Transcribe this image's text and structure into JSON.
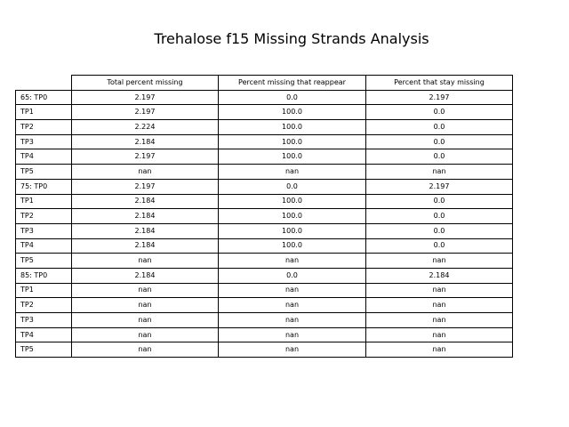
{
  "chart_data": {
    "type": "table",
    "title": "Trehalose f15 Missing Strands Analysis",
    "columns": [
      "Total percent missing",
      "Percent missing that reappear",
      "Percent that stay missing"
    ],
    "rows": [
      {
        "label": "65: TP0",
        "values": [
          "2.197",
          "0.0",
          "2.197"
        ]
      },
      {
        "label": "TP1",
        "values": [
          "2.197",
          "100.0",
          "0.0"
        ]
      },
      {
        "label": "TP2",
        "values": [
          "2.224",
          "100.0",
          "0.0"
        ]
      },
      {
        "label": "TP3",
        "values": [
          "2.184",
          "100.0",
          "0.0"
        ]
      },
      {
        "label": "TP4",
        "values": [
          "2.197",
          "100.0",
          "0.0"
        ]
      },
      {
        "label": "TP5",
        "values": [
          "nan",
          "nan",
          "nan"
        ]
      },
      {
        "label": "75: TP0",
        "values": [
          "2.197",
          "0.0",
          "2.197"
        ]
      },
      {
        "label": "TP1",
        "values": [
          "2.184",
          "100.0",
          "0.0"
        ]
      },
      {
        "label": "TP2",
        "values": [
          "2.184",
          "100.0",
          "0.0"
        ]
      },
      {
        "label": "TP3",
        "values": [
          "2.184",
          "100.0",
          "0.0"
        ]
      },
      {
        "label": "TP4",
        "values": [
          "2.184",
          "100.0",
          "0.0"
        ]
      },
      {
        "label": "TP5",
        "values": [
          "nan",
          "nan",
          "nan"
        ]
      },
      {
        "label": "85: TP0",
        "values": [
          "2.184",
          "0.0",
          "2.184"
        ]
      },
      {
        "label": "TP1",
        "values": [
          "nan",
          "nan",
          "nan"
        ]
      },
      {
        "label": "TP2",
        "values": [
          "nan",
          "nan",
          "nan"
        ]
      },
      {
        "label": "TP3",
        "values": [
          "nan",
          "nan",
          "nan"
        ]
      },
      {
        "label": "TP4",
        "values": [
          "nan",
          "nan",
          "nan"
        ]
      },
      {
        "label": "TP5",
        "values": [
          "nan",
          "nan",
          "nan"
        ]
      }
    ]
  }
}
